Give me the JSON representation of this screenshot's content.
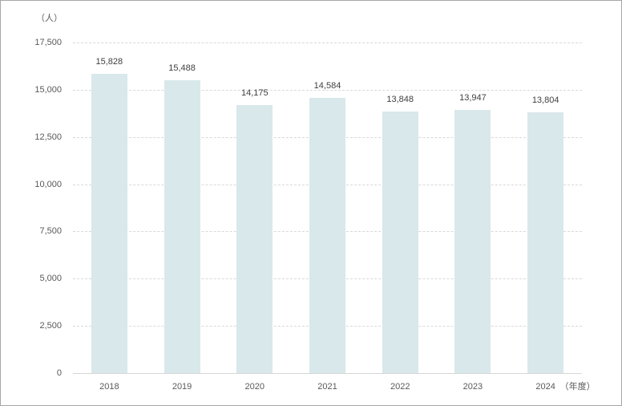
{
  "chart": {
    "unit_label": "（人）"
  },
  "chart_data": {
    "type": "bar",
    "title": "",
    "unit": "（人）",
    "categories": [
      "2018",
      "2019",
      "2020",
      "2021",
      "2022",
      "2023",
      "2024"
    ],
    "values": [
      15828,
      15488,
      14175,
      14584,
      13848,
      13947,
      13804
    ],
    "value_labels": [
      "15,828",
      "15,488",
      "14,175",
      "14,584",
      "13,848",
      "13,947",
      "13,804"
    ],
    "x_axis_suffix": "（年度）",
    "xlabel": "年度",
    "ylabel": "人",
    "ylim": [
      0,
      17500
    ],
    "yticks": [
      {
        "value": 17500,
        "label": "17,500"
      },
      {
        "value": 15000,
        "label": "15,000"
      },
      {
        "value": 12500,
        "label": "12,500"
      },
      {
        "value": 10000,
        "label": "10,000"
      },
      {
        "value": 7500,
        "label": "7,500"
      },
      {
        "value": 5000,
        "label": "5,000"
      },
      {
        "value": 2500,
        "label": "2,500"
      },
      {
        "value": 0,
        "label": "0"
      }
    ],
    "grid": "horizontal-dashed",
    "legend": "none",
    "colors": {
      "bar_fill": "#d9e8ea",
      "gridline": "#d9d9d9",
      "axis_line": "#d6d6d6",
      "tick_text": "#595959",
      "value_text": "#404040",
      "frame_border": "#a6a6a6"
    }
  }
}
